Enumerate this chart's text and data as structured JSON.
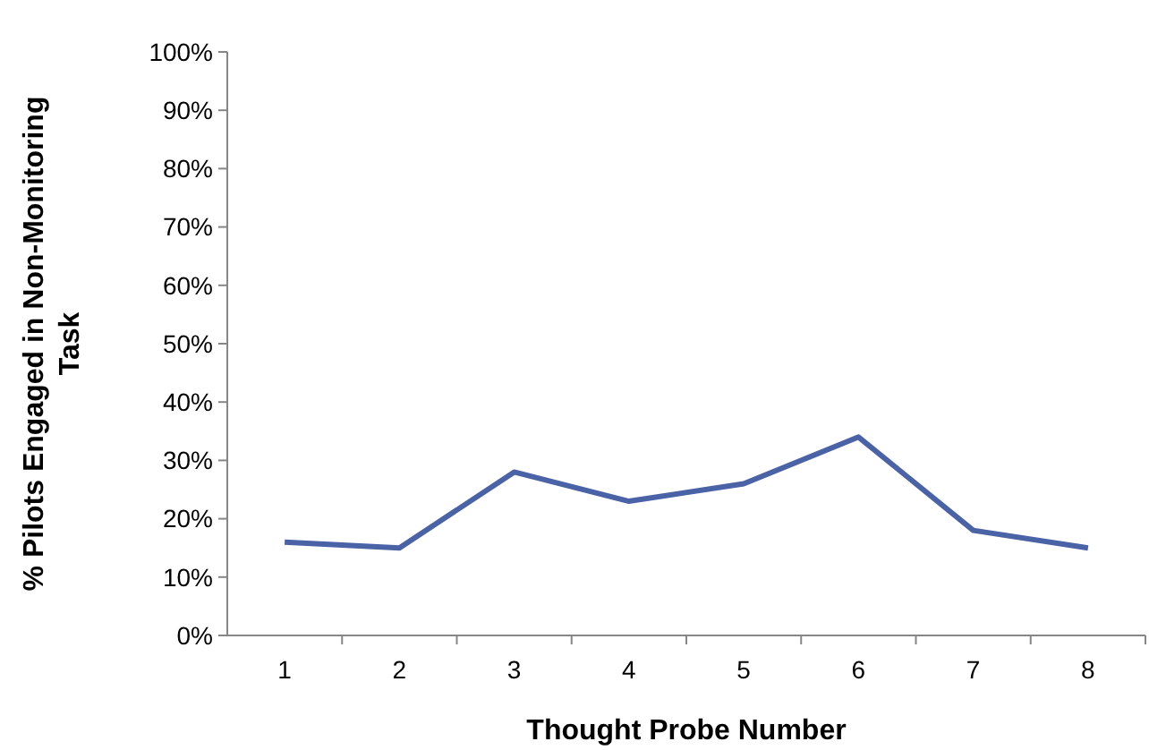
{
  "chart_data": {
    "type": "line",
    "xlabel": "Thought Probe Number",
    "ylabel": "% Pilots Engaged in Non-Monitoring Task",
    "categories": [
      "1",
      "2",
      "3",
      "4",
      "5",
      "6",
      "7",
      "8"
    ],
    "series": [
      {
        "color": "#4a62a6",
        "values": [
          16,
          15,
          28,
          23,
          26,
          34,
          18,
          15
        ]
      }
    ],
    "ylim": [
      0,
      100
    ],
    "yticks": [
      {
        "value": 0,
        "label": "0%"
      },
      {
        "value": 10,
        "label": "10%"
      },
      {
        "value": 20,
        "label": "20%"
      },
      {
        "value": 30,
        "label": "30%"
      },
      {
        "value": 40,
        "label": "40%"
      },
      {
        "value": 50,
        "label": "50%"
      },
      {
        "value": 60,
        "label": "60%"
      },
      {
        "value": 70,
        "label": "70%"
      },
      {
        "value": 80,
        "label": "80%"
      },
      {
        "value": 90,
        "label": "90%"
      },
      {
        "value": 100,
        "label": "100%"
      }
    ],
    "grid": false,
    "marker": "none",
    "line_style": "solid"
  }
}
